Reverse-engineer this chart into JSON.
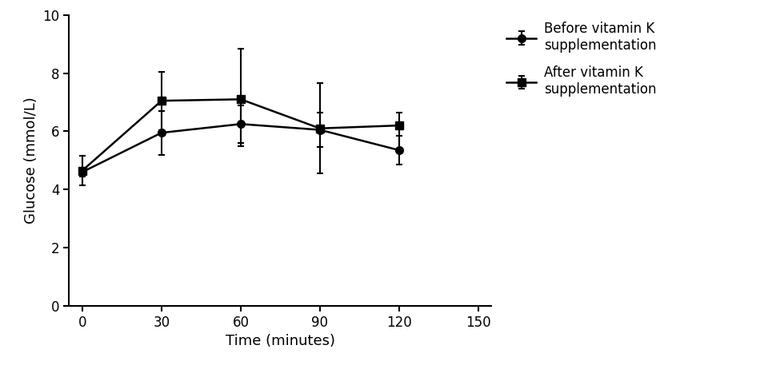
{
  "x": [
    0,
    30,
    60,
    90,
    120
  ],
  "before_y": [
    4.6,
    5.95,
    6.25,
    6.05,
    5.35
  ],
  "before_yerr_low": [
    0.15,
    0.75,
    0.65,
    0.6,
    0.5
  ],
  "before_yerr_high": [
    0.15,
    0.75,
    0.65,
    0.6,
    0.5
  ],
  "after_y": [
    4.65,
    7.05,
    7.1,
    6.1,
    6.2
  ],
  "after_yerr_low": [
    0.5,
    1.0,
    1.6,
    1.55,
    0.85
  ],
  "after_yerr_high": [
    0.5,
    1.0,
    1.75,
    1.55,
    0.45
  ],
  "xlabel": "Time (minutes)",
  "ylabel": "Glucose (mmol/L)",
  "xlim": [
    -5,
    155
  ],
  "ylim": [
    0,
    10
  ],
  "xticks": [
    0,
    30,
    60,
    90,
    120,
    150
  ],
  "yticks": [
    0,
    2,
    4,
    6,
    8,
    10
  ],
  "legend_before": "Before vitamin K\nsupplementation",
  "legend_after": "After vitamin K\nsupplementation",
  "line_color": "#000000",
  "marker_before": "o",
  "marker_after": "s",
  "markersize": 7,
  "linewidth": 1.8,
  "capsize": 3,
  "elinewidth": 1.5,
  "capthick": 1.5
}
